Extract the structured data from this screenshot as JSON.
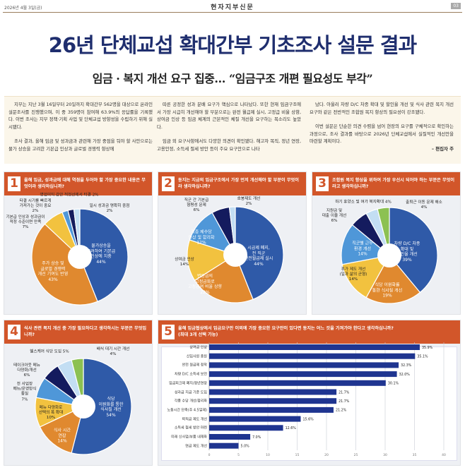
{
  "header": {
    "date": "2026년 4월 3일(금)",
    "paper_name": "현자지부신문",
    "page": "03"
  },
  "title": "26년 단체교섭 확대간부 기초조사 설문 결과",
  "subtitle": "임금 · 복지 개선 요구 집중… “임금구조 개편 필요성도 부각”",
  "article": {
    "col1": [
      "지부는 지난 3월 16일부터 20일까지 확대간부 562명을 대상으로 온라인 설문조사를 진행했으며, 이 중 359명이 참여해 63.9%의 응답률을 기록했다. 이번 조사는 지부 정책·기획 사업 및 단체교섭 방향성을 수립하기 위해 실시됐다.",
      "조사 결과, 올해 임금 및 성과금과 관련해 가장 중점을 둬야 할 사안으로는 물가 상승을 고려한 기본급 인상과 글로벌 경쟁력 향상에"
    ],
    "col2": [
      "따른 공정한 성과 분배 요구가 핵심으로 나타났다. 또한 현재 임금구조에서 가장 시급히 개선해야 할 부분으로는 완전 월급제 실시, 고정급 비율 상향, 상여금 인상 등 임금 체계의 근본적인 체질 개선을 요구하는 목소리도 높았다.",
      "임금 외 요구사항에서도 다양한 의견이 확인됐다. 해고자 복직, 정년 연장, 고용안정, 소득세 절세 방안 등이 주요 요구안으로 나타"
    ],
    "col3": [
      "났다. 아울러 차량 D/C 차종 확대 및 할인율 개선 및 식사 관련 복지 개선 요구와 같은 전반적인 조합원 복지 향상의 필요성이 강조됐다.",
      "이번 설문은 단순한 의견 수렴을 넘어 현장의 요구를 구체적으로 확인하는 과정으로, 조사 결과를 바탕으로 2026년 단체교섭에서 실질적인 개선안을 마련할 계획이다."
    ],
    "signature": "– 편집자 주"
  },
  "colors": {
    "accent": "#d2562a",
    "title": "#1f2e6e",
    "blue": "#2f5aa8",
    "orange": "#e0892f",
    "yellow": "#f2c23f",
    "light_blue": "#4f97d8",
    "navy": "#141b5e",
    "pale_blue": "#c3def3",
    "green": "#8cc152",
    "bar": "#1f3590"
  },
  "chart_data": [
    {
      "type": "pie",
      "number": "1",
      "title": "올해 임금, 성과금에 대해 역점을 두어야 할 가장 중요한 내용은 무엇이라 생각하십니까?",
      "slices": [
        {
          "label": "물가상승을\n고려하여 기본급\n인상에 치중",
          "value": 44,
          "color": "#2f5aa8"
        },
        {
          "label": "주가 상승 및\n글로벌 경쟁력\n개선 기여도 반영",
          "value": 43,
          "color": "#e0892f"
        },
        {
          "label": "기본급 인상과 성과금이\n적정 수준이면 만족",
          "value": 7,
          "color": "#f2c23f"
        },
        {
          "label": "타결 시기를 빠르게\n가져가는 것이 중요",
          "value": 2,
          "color": "#4f97d8"
        },
        {
          "label": "영업이익 감안 적정선에서 타결",
          "value": 2,
          "color": "#141b5e"
        },
        {
          "label": "일시 성과금 명확히 중점",
          "value": 2,
          "color": "#c3def3"
        }
      ]
    },
    {
      "type": "pie",
      "number": "2",
      "title": "동지는 지금의 임금구조에서 가장 먼저 개선해야 할 부분이 무엇이라 생각하십니까?",
      "slices": [
        {
          "label": "시급제 폐지,\n전 직군\n완전월급제 실시",
          "value": 44,
          "color": "#2f5aa8"
        },
        {
          "label": "변동급의\n고정급화로\n고정급여 비율 상향",
          "value": 22,
          "color": "#e0892f"
        },
        {
          "label": "상여금 인상",
          "value": 14,
          "color": "#f2c23f"
        },
        {
          "label": "각종 제수당\n인상 및 합리화",
          "value": 12,
          "color": "#4f97d8"
        },
        {
          "label": "직군 간 기본급\n형평성 문제",
          "value": 6,
          "color": "#141b5e"
        },
        {
          "label": "호봉제도 개선",
          "value": 2,
          "color": "#c3def3"
        }
      ]
    },
    {
      "type": "pie",
      "number": "3",
      "title": "조합원 복지 향상을 위하여 가장 우선시 되어야 하는 부분은 무엇이라고 생각하십니까?",
      "slices": [
        {
          "label": "차량 D/C 차종\n확대 및\n할인율 개선",
          "value": 39,
          "color": "#2f5aa8"
        },
        {
          "label": "식당 이원화를\n통한 식사질 개선",
          "value": 19,
          "color": "#e0892f"
        },
        {
          "label": "휴가 제도 개선\n(일과 삶의 균형)",
          "value": 14,
          "color": "#f2c23f"
        },
        {
          "label": "직군별 근무\n환경 개선",
          "value": 14,
          "color": "#4f97d8"
        },
        {
          "label": "지원금 및\n대출 이율 개선",
          "value": 6,
          "color": "#141b5e"
        },
        {
          "label": "하기 휴양소 및 여가 복지확대",
          "value": 4,
          "color": "#c3def3"
        },
        {
          "label": "출퇴근 이동 문제 해소",
          "value": 4,
          "color": "#8cc152"
        }
      ]
    },
    {
      "type": "pie",
      "number": "4",
      "title": "식사 관련 복지 개선 중 가장 필요하다고 생각하시는 부분은 무엇입니까?",
      "slices": [
        {
          "label": "식당\n이원화를 통한\n식사질 개선",
          "value": 54,
          "color": "#2f5aa8"
        },
        {
          "label": "식사 시간\n연장",
          "value": 14,
          "color": "#e0892f"
        },
        {
          "label": "메뉴 다양화로\n선택의 폭 확대",
          "value": 10,
          "color": "#f2c23f"
        },
        {
          "label": "전 사업장\n메뉴/운영방식\n통일",
          "value": 7,
          "color": "#4f97d8"
        },
        {
          "label": "테이크아웃 메뉴\n다양화/개선",
          "value": 6,
          "color": "#141b5e"
        },
        {
          "label": "헬스케어 식단 도입",
          "value": 5,
          "color": "#c3def3"
        },
        {
          "label": "배식 대기 시간 개선",
          "value": 4,
          "color": "#8cc152"
        }
      ]
    },
    {
      "type": "bar",
      "orientation": "horizontal",
      "number": "5",
      "title": "올해 임금협상에서 임금요구안 이외에 가장 중요한 요구안이 있다면 동지는 어느 것을 가져가야 한다고 생각하십니까?",
      "subtitle": "(최대 3개 선택 가능)",
      "categories": [
        "상여금 인상",
        "신입사원 충원",
        "완전 월급제 정착",
        "차량 D/C 소득세 보전",
        "임금피크제 폐지/정년연장",
        "성과급 지급 기준 도입",
        "각종 수당 개선/합리화",
        "노동시간 단축(주 4.5일제)",
        "퇴직금 제도 개선",
        "소득세 절세 방안 마련",
        "미래 신사업/부품 내재화",
        "연금 제도 개선"
      ],
      "values": [
        35.9,
        35.1,
        32.3,
        32.0,
        30.1,
        21.7,
        21.7,
        21.2,
        15.6,
        12.6,
        7.0,
        5.0
      ],
      "unit": "%",
      "xlim": [
        0,
        40
      ],
      "xticks": [
        0,
        5,
        10,
        15,
        20,
        25,
        30,
        35,
        40
      ],
      "grid": true
    }
  ]
}
